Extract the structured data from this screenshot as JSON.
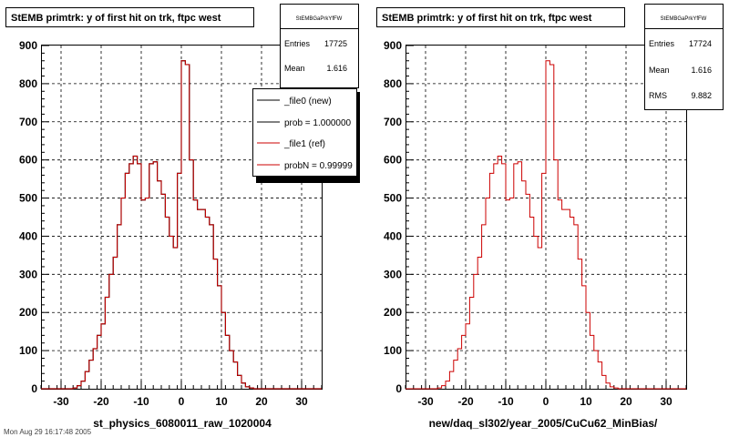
{
  "footer_text": "Mon Aug 29 16:17:48 2005",
  "chart_data": [
    {
      "type": "line",
      "title": "StEMB primtrk: y of first hit on trk, ftpc west",
      "xlabel": "st_physics_6080011_raw_1020004",
      "ylabel": "",
      "xlim": [
        -35,
        35
      ],
      "ylim": [
        0,
        900
      ],
      "x_ticks": [
        -30,
        -20,
        -10,
        0,
        10,
        20,
        30
      ],
      "y_ticks": [
        0,
        100,
        200,
        300,
        400,
        500,
        600,
        700,
        800,
        900
      ],
      "grid": true,
      "bin_low_edge": -35,
      "bin_width": 1,
      "series": [
        {
          "name": "_file0 (new)",
          "color": "#000000",
          "values": [
            0,
            0,
            0,
            0,
            0,
            0,
            0,
            0,
            2,
            8,
            20,
            45,
            75,
            105,
            140,
            170,
            240,
            300,
            345,
            430,
            500,
            565,
            590,
            610,
            590,
            495,
            500,
            590,
            595,
            545,
            510,
            450,
            400,
            370,
            565,
            860,
            850,
            600,
            495,
            470,
            470,
            450,
            430,
            340,
            270,
            200,
            140,
            100,
            70,
            35,
            15,
            5,
            2,
            0,
            0,
            0,
            0,
            0,
            0,
            0,
            0,
            0,
            0,
            0,
            0,
            0,
            0,
            0,
            0,
            0
          ]
        },
        {
          "name": "_file1 (ref)",
          "color": "#cc0000",
          "values": [
            0,
            0,
            0,
            0,
            0,
            0,
            0,
            0,
            2,
            8,
            20,
            45,
            75,
            105,
            140,
            170,
            240,
            300,
            345,
            430,
            500,
            565,
            590,
            610,
            590,
            495,
            500,
            590,
            595,
            545,
            510,
            450,
            400,
            370,
            565,
            860,
            850,
            600,
            495,
            470,
            470,
            450,
            430,
            340,
            270,
            200,
            140,
            100,
            70,
            35,
            15,
            5,
            2,
            0,
            0,
            0,
            0,
            0,
            0,
            0,
            0,
            0,
            0,
            0,
            0,
            0,
            0,
            0,
            0,
            0
          ]
        }
      ],
      "stats": {
        "name": "StEMBGaPrkYfFW",
        "entries_label": "Entries",
        "entries": "17725",
        "mean_label": "Mean",
        "mean": "1.616"
      },
      "legend": {
        "placement": "top-right",
        "entries": [
          "_file0 (new)",
          "prob = 1.000000",
          "_file1 (ref)",
          "probN = 0.99999"
        ]
      }
    },
    {
      "type": "line",
      "title": "StEMB primtrk: y of first hit on trk, ftpc west",
      "xlabel": "new/daq_sl302/year_2005/CuCu62_MinBias/",
      "ylabel": "",
      "xlim": [
        -35,
        35
      ],
      "ylim": [
        0,
        900
      ],
      "x_ticks": [
        -30,
        -20,
        -10,
        0,
        10,
        20,
        30
      ],
      "y_ticks": [
        0,
        100,
        200,
        300,
        400,
        500,
        600,
        700,
        800,
        900
      ],
      "grid": true,
      "bin_low_edge": -35,
      "bin_width": 1,
      "series": [
        {
          "color": "#cc0000",
          "values": [
            0,
            0,
            0,
            0,
            0,
            0,
            0,
            0,
            2,
            8,
            20,
            45,
            75,
            105,
            140,
            170,
            240,
            300,
            345,
            430,
            500,
            565,
            590,
            610,
            590,
            495,
            500,
            590,
            595,
            545,
            510,
            450,
            400,
            370,
            565,
            860,
            850,
            600,
            495,
            470,
            470,
            450,
            430,
            340,
            270,
            200,
            140,
            100,
            70,
            35,
            15,
            5,
            2,
            0,
            0,
            0,
            0,
            0,
            0,
            0,
            0,
            0,
            0,
            0,
            0,
            0,
            0,
            0,
            0,
            0
          ]
        }
      ],
      "stats": {
        "name": "StEMBGaPrkYfFW",
        "entries_label": "Entries",
        "entries": "17724",
        "mean_label": "Mean",
        "mean": "1.616",
        "rms_label": "RMS",
        "rms": "9.882"
      }
    }
  ]
}
